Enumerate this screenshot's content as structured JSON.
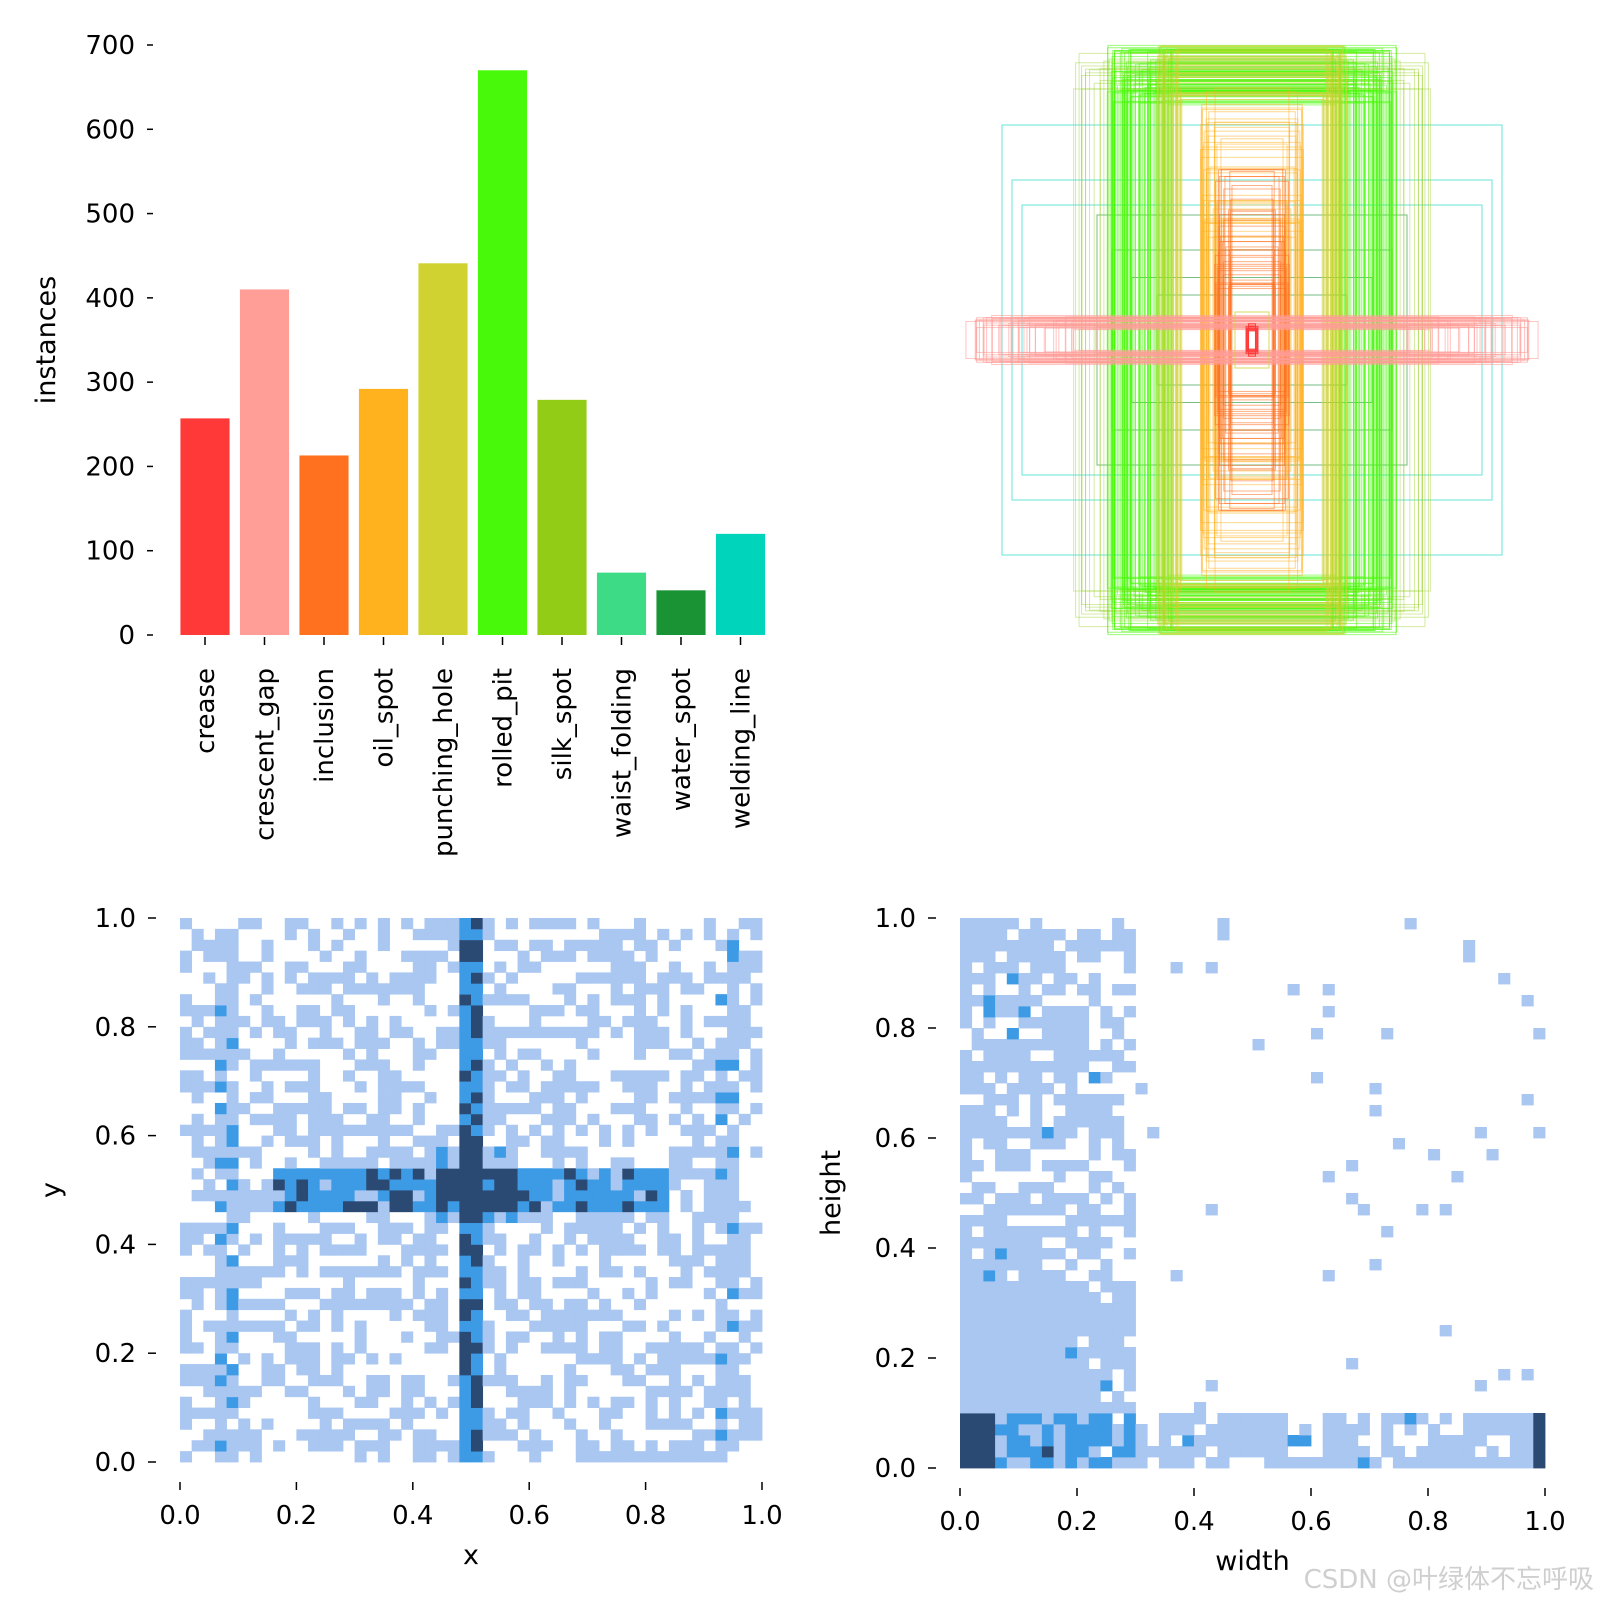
{
  "colors": {
    "tick": "#000000",
    "hist_light": "#a9c7f0",
    "hist_mid": "#3d9be6",
    "hist_dark": "#2b4a73"
  },
  "chart_data": [
    {
      "id": "class-instances",
      "type": "bar",
      "title": "",
      "xlabel": "",
      "ylabel": "instances",
      "ylim": [
        0,
        700
      ],
      "yticks": [
        "0",
        "100",
        "200",
        "300",
        "400",
        "500",
        "600",
        "700"
      ],
      "categories": [
        "crease",
        "crescent_gap",
        "inclusion",
        "oil_spot",
        "punching_hole",
        "rolled_pit",
        "silk_spot",
        "waist_folding",
        "water_spot",
        "welding_line"
      ],
      "values": [
        257,
        410,
        213,
        292,
        441,
        670,
        279,
        74,
        53,
        120
      ],
      "colors": [
        "#ff3838",
        "#ff9d97",
        "#ff701f",
        "#ffb21d",
        "#cfd231",
        "#48f90a",
        "#92cc17",
        "#3ddb86",
        "#1a9334",
        "#00d4bb"
      ]
    },
    {
      "id": "box-overlay",
      "type": "box_overlay",
      "title": "",
      "description_classes": [
        "crease",
        "crescent_gap",
        "inclusion",
        "oil_spot",
        "punching_hole",
        "rolled_pit",
        "silk_spot",
        "waist_folding",
        "water_spot",
        "welding_line"
      ]
    },
    {
      "id": "xy-heatmap",
      "type": "heatmap",
      "title": "",
      "xlabel": "x",
      "ylabel": "y",
      "xlim": [
        0,
        1
      ],
      "ylim": [
        0,
        1
      ],
      "xticks": [
        "0.0",
        "0.2",
        "0.4",
        "0.6",
        "0.8",
        "1.0"
      ],
      "yticks": [
        "0.0",
        "0.2",
        "0.4",
        "0.6",
        "0.8",
        "1.0"
      ],
      "bins": 50,
      "peaks": [
        {
          "x": 0.5,
          "y": 0.5,
          "note": "dense cross at center"
        },
        {
          "x": 0.07,
          "y": 0.05
        },
        {
          "x": 0.93,
          "y": 0.05
        }
      ]
    },
    {
      "id": "wh-heatmap",
      "type": "heatmap",
      "title": "",
      "xlabel": "width",
      "ylabel": "height",
      "xlim": [
        0,
        1
      ],
      "ylim": [
        0,
        1
      ],
      "xticks": [
        "0.0",
        "0.2",
        "0.4",
        "0.6",
        "0.8",
        "1.0"
      ],
      "yticks": [
        "0.0",
        "0.2",
        "0.4",
        "0.6",
        "0.8",
        "1.0"
      ],
      "bins": 50,
      "peaks": [
        {
          "x": 0.04,
          "y": 0.07,
          "note": "small boxes"
        },
        {
          "x": 0.99,
          "y": 0.07,
          "note": "full-width thin boxes"
        }
      ]
    }
  ],
  "watermark": "CSDN @叶绿体不忘呼吸"
}
